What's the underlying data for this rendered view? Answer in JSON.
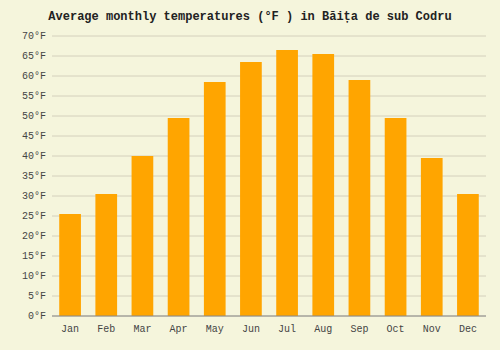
{
  "chart_data": {
    "type": "bar",
    "title": "Average monthly temperatures (°F ) in Băița de sub Codru",
    "categories": [
      "Jan",
      "Feb",
      "Mar",
      "Apr",
      "May",
      "Jun",
      "Jul",
      "Aug",
      "Sep",
      "Oct",
      "Nov",
      "Dec"
    ],
    "values": [
      25.5,
      30.5,
      40.0,
      49.5,
      58.5,
      63.5,
      66.5,
      65.5,
      59.0,
      49.5,
      39.5,
      30.5
    ],
    "color": "#FFA500",
    "ylim": [
      0,
      70
    ],
    "yticks": [
      {
        "value": 0,
        "label": "0°F"
      },
      {
        "value": 5,
        "label": "5°F"
      },
      {
        "value": 10,
        "label": "10°F"
      },
      {
        "value": 15,
        "label": "15°F"
      },
      {
        "value": 20,
        "label": "20°F"
      },
      {
        "value": 25,
        "label": "25°F"
      },
      {
        "value": 30,
        "label": "30°F"
      },
      {
        "value": 35,
        "label": "35°F"
      },
      {
        "value": 40,
        "label": "40°F"
      },
      {
        "value": 45,
        "label": "45°F"
      },
      {
        "value": 50,
        "label": "50°F"
      },
      {
        "value": 55,
        "label": "55°F"
      },
      {
        "value": 60,
        "label": "60°F"
      },
      {
        "value": 65,
        "label": "65°F"
      },
      {
        "value": 70,
        "label": "70°F"
      }
    ],
    "grid": true
  }
}
